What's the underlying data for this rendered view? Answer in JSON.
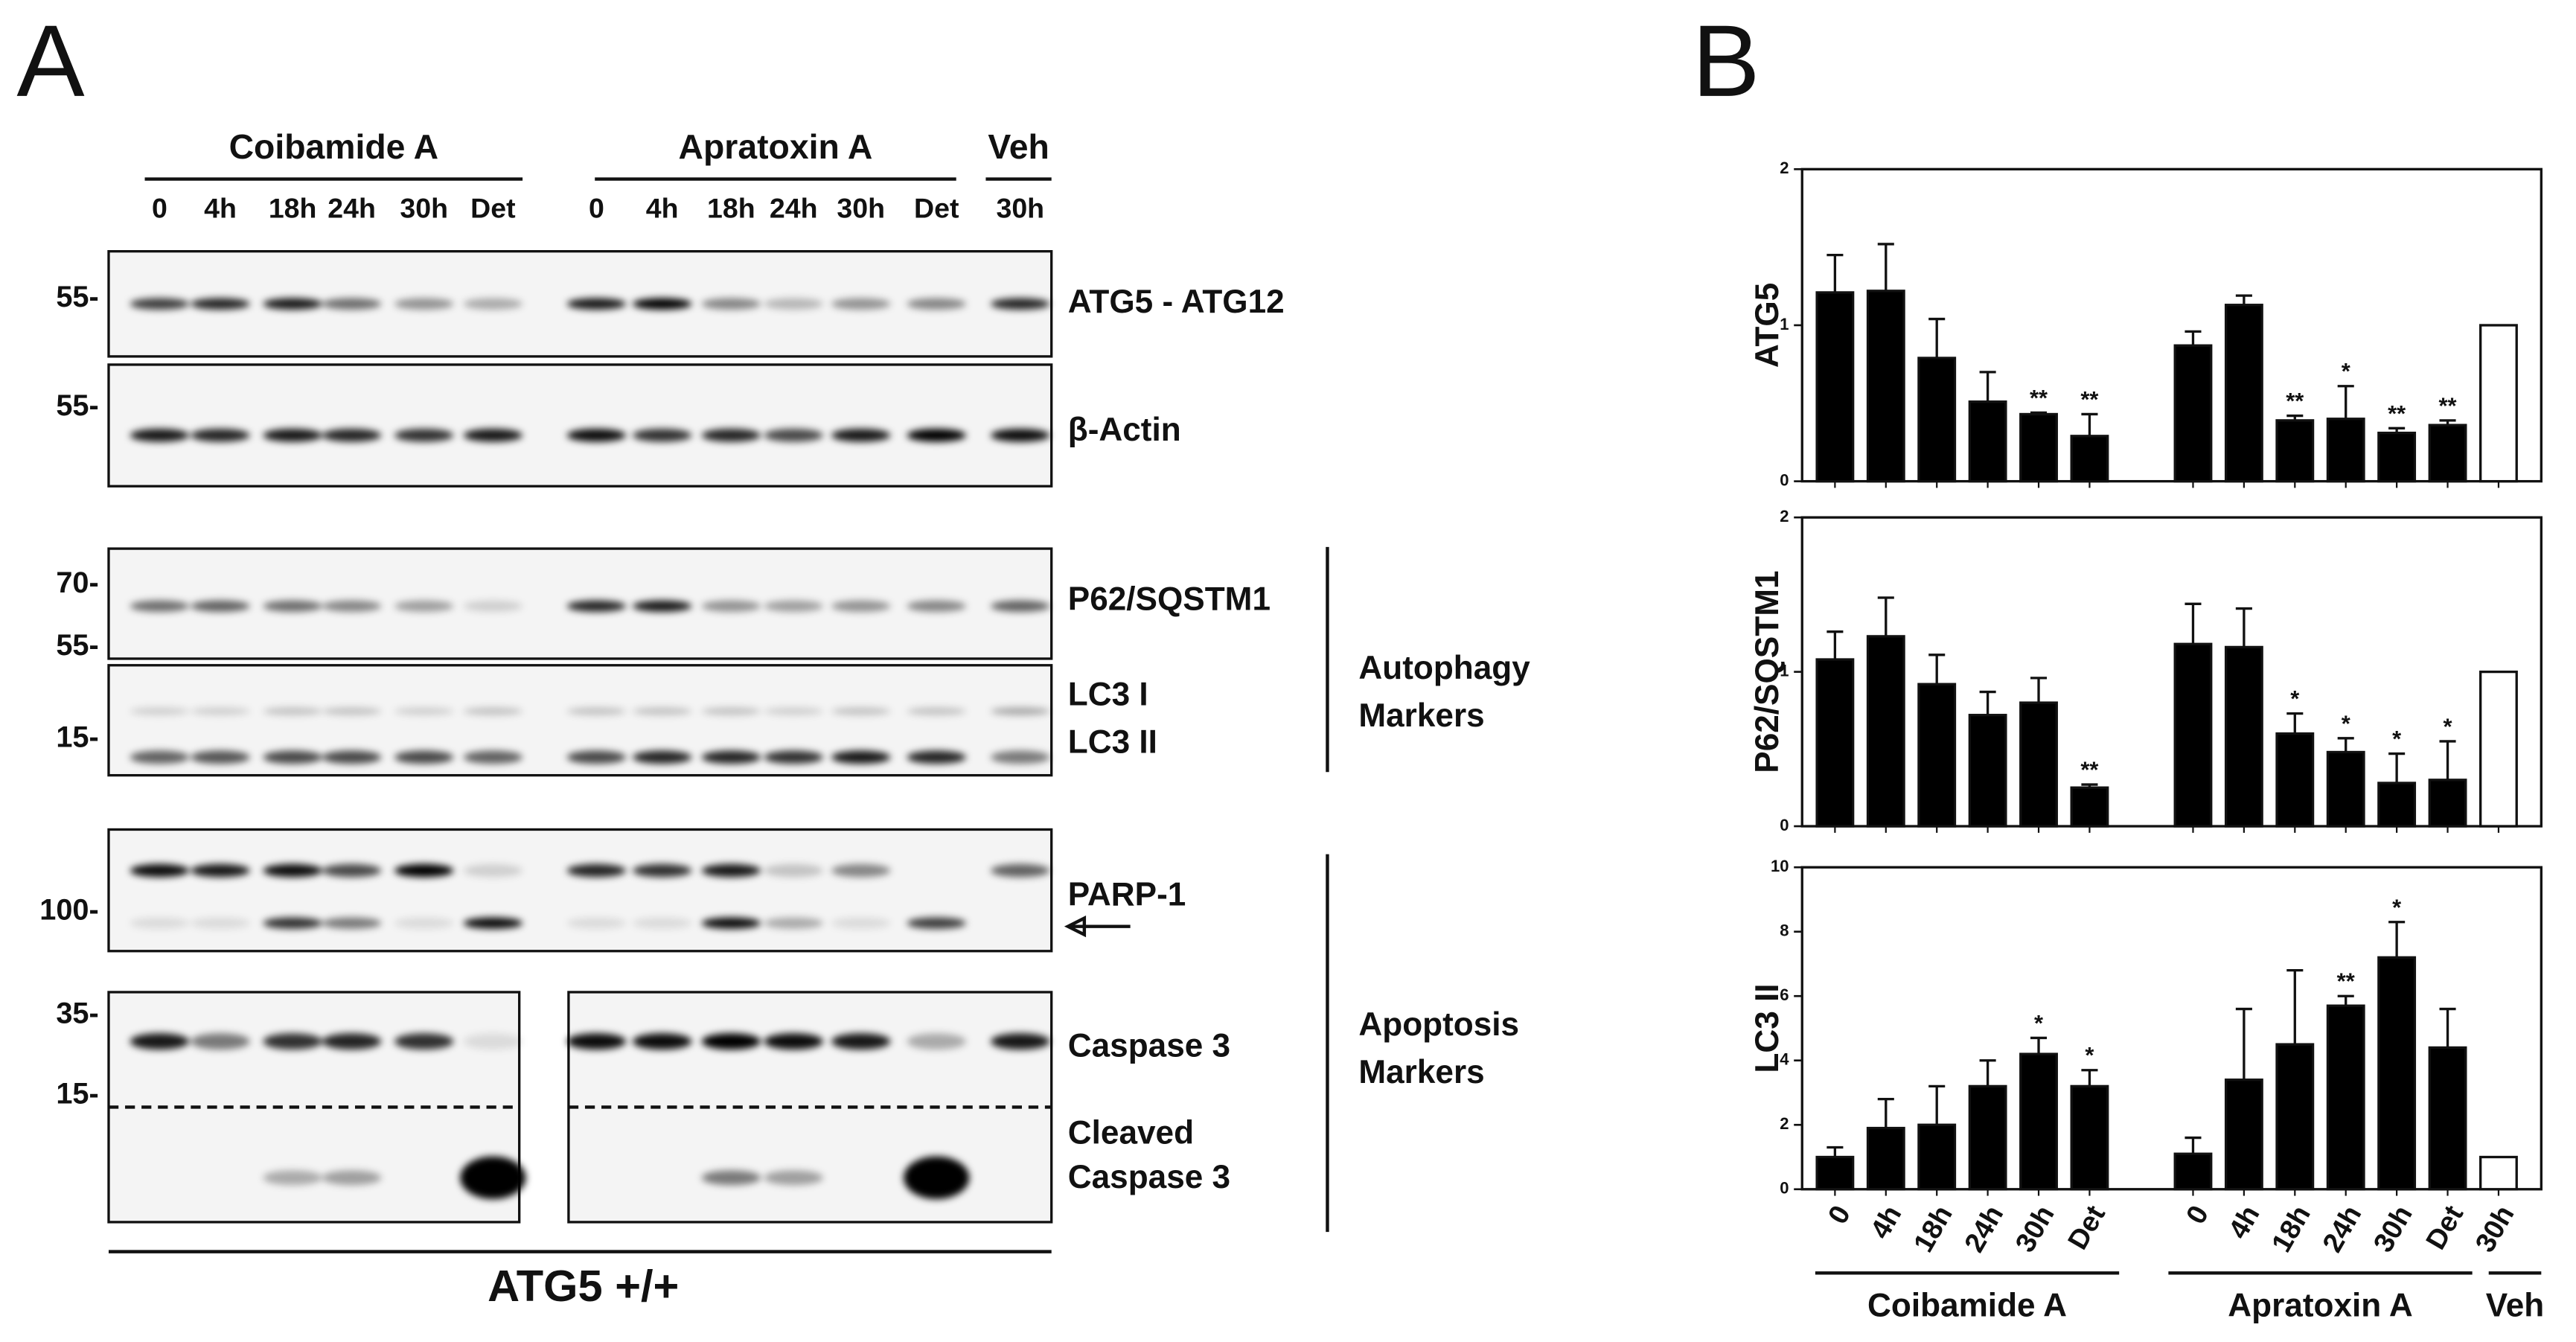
{
  "panel_a": {
    "label": "A",
    "groups": [
      {
        "name": "Coibamide A",
        "lanes": [
          "0",
          "4h",
          "18h",
          "24h",
          "30h",
          "Det"
        ]
      },
      {
        "name": "Apratoxin A",
        "lanes": [
          "0",
          "4h",
          "18h",
          "24h",
          "30h",
          "Det"
        ]
      },
      {
        "name": "Veh",
        "lanes": [
          "30h"
        ]
      }
    ],
    "mw_markers": [
      "55-",
      "55-",
      "70-",
      "55-",
      "15-",
      "100-",
      "35-",
      "15-"
    ],
    "blot_labels": [
      "ATG5 - ATG12",
      "β-Actin",
      "P62/SQSTM1",
      "LC3 I",
      "LC3 II",
      "PARP-1",
      "Caspase 3",
      "Cleaved",
      "Caspase 3"
    ],
    "side_labels": [
      [
        "Autophagy",
        "Markers"
      ],
      [
        "Apoptosis",
        "Markers"
      ]
    ],
    "footer": "ATG5 +/+"
  },
  "panel_b": {
    "label": "B",
    "groups": [
      "Coibamide A",
      "Apratoxin A",
      "Veh"
    ]
  },
  "chart_data": [
    {
      "type": "bar",
      "y_label": "ATG5",
      "ylim": [
        0,
        2
      ],
      "yticks": [
        0,
        1,
        2
      ],
      "values": [
        1.21,
        1.22,
        0.79,
        0.51,
        0.43,
        0.29,
        0.87,
        1.13,
        0.39,
        0.4,
        0.31,
        0.36,
        1.0
      ],
      "errors": [
        0.24,
        0.3,
        0.25,
        0.19,
        0.01,
        0.14,
        0.09,
        0.06,
        0.03,
        0.21,
        0.03,
        0.03,
        null
      ],
      "annotations": [
        null,
        null,
        null,
        null,
        "**",
        "**",
        null,
        null,
        "**",
        "*",
        "**",
        "**",
        null
      ],
      "colors": [
        "#000",
        "#000",
        "#000",
        "#000",
        "#000",
        "#000",
        "#000",
        "#000",
        "#000",
        "#000",
        "#000",
        "#000",
        "#fff"
      ]
    },
    {
      "type": "bar",
      "y_label": "P62/SQSTM1",
      "ylim": [
        0,
        2
      ],
      "yticks": [
        0,
        1,
        2
      ],
      "values": [
        1.08,
        1.23,
        0.92,
        0.72,
        0.8,
        0.25,
        1.18,
        1.16,
        0.6,
        0.48,
        0.28,
        0.3,
        1.0
      ],
      "errors": [
        0.18,
        0.25,
        0.19,
        0.15,
        0.16,
        0.02,
        0.26,
        0.25,
        0.13,
        0.09,
        0.19,
        0.25,
        null
      ],
      "annotations": [
        null,
        null,
        null,
        null,
        null,
        "**",
        null,
        null,
        "*",
        "*",
        "*",
        "*",
        null
      ],
      "colors": [
        "#000",
        "#000",
        "#000",
        "#000",
        "#000",
        "#000",
        "#000",
        "#000",
        "#000",
        "#000",
        "#000",
        "#000",
        "#fff"
      ]
    },
    {
      "type": "bar",
      "y_label": "LC3 II",
      "ylim": [
        0,
        10
      ],
      "yticks": [
        0,
        2,
        4,
        6,
        8,
        10
      ],
      "categories": [
        "0",
        "4h",
        "18h",
        "24h",
        "30h",
        "Det",
        "0",
        "4h",
        "18h",
        "24h",
        "30h",
        "Det",
        "30h"
      ],
      "values": [
        1.0,
        1.9,
        2.0,
        3.2,
        4.2,
        3.2,
        1.1,
        3.4,
        4.5,
        5.7,
        7.2,
        4.4,
        1.0
      ],
      "errors": [
        0.3,
        0.9,
        1.2,
        0.8,
        0.5,
        0.5,
        0.5,
        2.2,
        2.3,
        0.3,
        1.1,
        1.2,
        null
      ],
      "annotations": [
        null,
        null,
        null,
        null,
        "*",
        "*",
        null,
        null,
        null,
        "**",
        "*",
        null,
        null
      ],
      "colors": [
        "#000",
        "#000",
        "#000",
        "#000",
        "#000",
        "#000",
        "#000",
        "#000",
        "#000",
        "#000",
        "#000",
        "#000",
        "#fff"
      ]
    }
  ]
}
